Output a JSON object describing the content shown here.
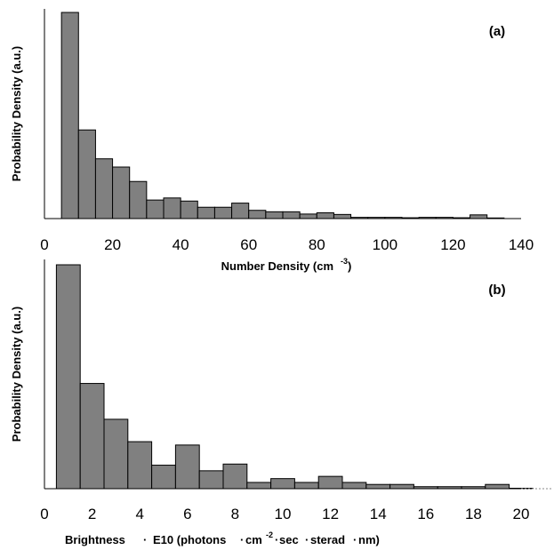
{
  "chart_data": [
    {
      "type": "bar",
      "panel_label": "(a)",
      "ylabel": "Probability Density (a.u.)",
      "xlabel_main": "Number Density (cm",
      "xlabel_sup": "-3",
      "xlabel_end": ")",
      "xlim": [
        0,
        140
      ],
      "ylim": [
        0,
        100
      ],
      "xticks": [
        "0",
        "20",
        "40",
        "60",
        "80",
        "100",
        "120",
        "140"
      ],
      "bin_width": 5,
      "bin_starts": [
        5,
        10,
        15,
        20,
        25,
        30,
        35,
        40,
        45,
        50,
        55,
        60,
        65,
        70,
        75,
        80,
        85,
        90,
        95,
        100,
        105,
        110,
        115,
        120,
        125,
        130
      ],
      "values": [
        100,
        43,
        29,
        25,
        18,
        9,
        10,
        8.5,
        5.5,
        5.5,
        7.5,
        4,
        3.3,
        3.3,
        2.2,
        2.8,
        2,
        0.6,
        0.6,
        0.6,
        0.4,
        0.6,
        0.6,
        0.4,
        1.8,
        0.3
      ],
      "bar_color": "#808080"
    },
    {
      "type": "bar",
      "panel_label": "(b)",
      "ylabel": "Probability Density (a.u.)",
      "xlabel_a": "Brightness",
      "xlabel_b": "E10 (photons",
      "xlabel_c": "cm",
      "xlabel_sup": "-2",
      "xlabel_d": "sec",
      "xlabel_e": "sterad",
      "xlabel_f": "nm)",
      "xlim": [
        0,
        20
      ],
      "ylim": [
        0,
        100
      ],
      "xticks": [
        "0",
        "2",
        "4",
        "6",
        "8",
        "10",
        "12",
        "14",
        "16",
        "18",
        "20"
      ],
      "bin_width": 1,
      "bin_starts": [
        0.5,
        1.5,
        2.5,
        3.5,
        4.5,
        5.5,
        6.5,
        7.5,
        8.5,
        9.5,
        10.5,
        11.5,
        12.5,
        13.5,
        14.5,
        15.5,
        16.5,
        17.5,
        18.5,
        19.5
      ],
      "values": [
        100,
        47,
        31,
        21,
        10.5,
        19.5,
        8,
        11,
        2.8,
        4.5,
        2.8,
        5.5,
        2.8,
        1.9,
        1.9,
        0.9,
        0.9,
        0.9,
        1.9,
        0.2
      ],
      "bar_color": "#808080"
    }
  ]
}
